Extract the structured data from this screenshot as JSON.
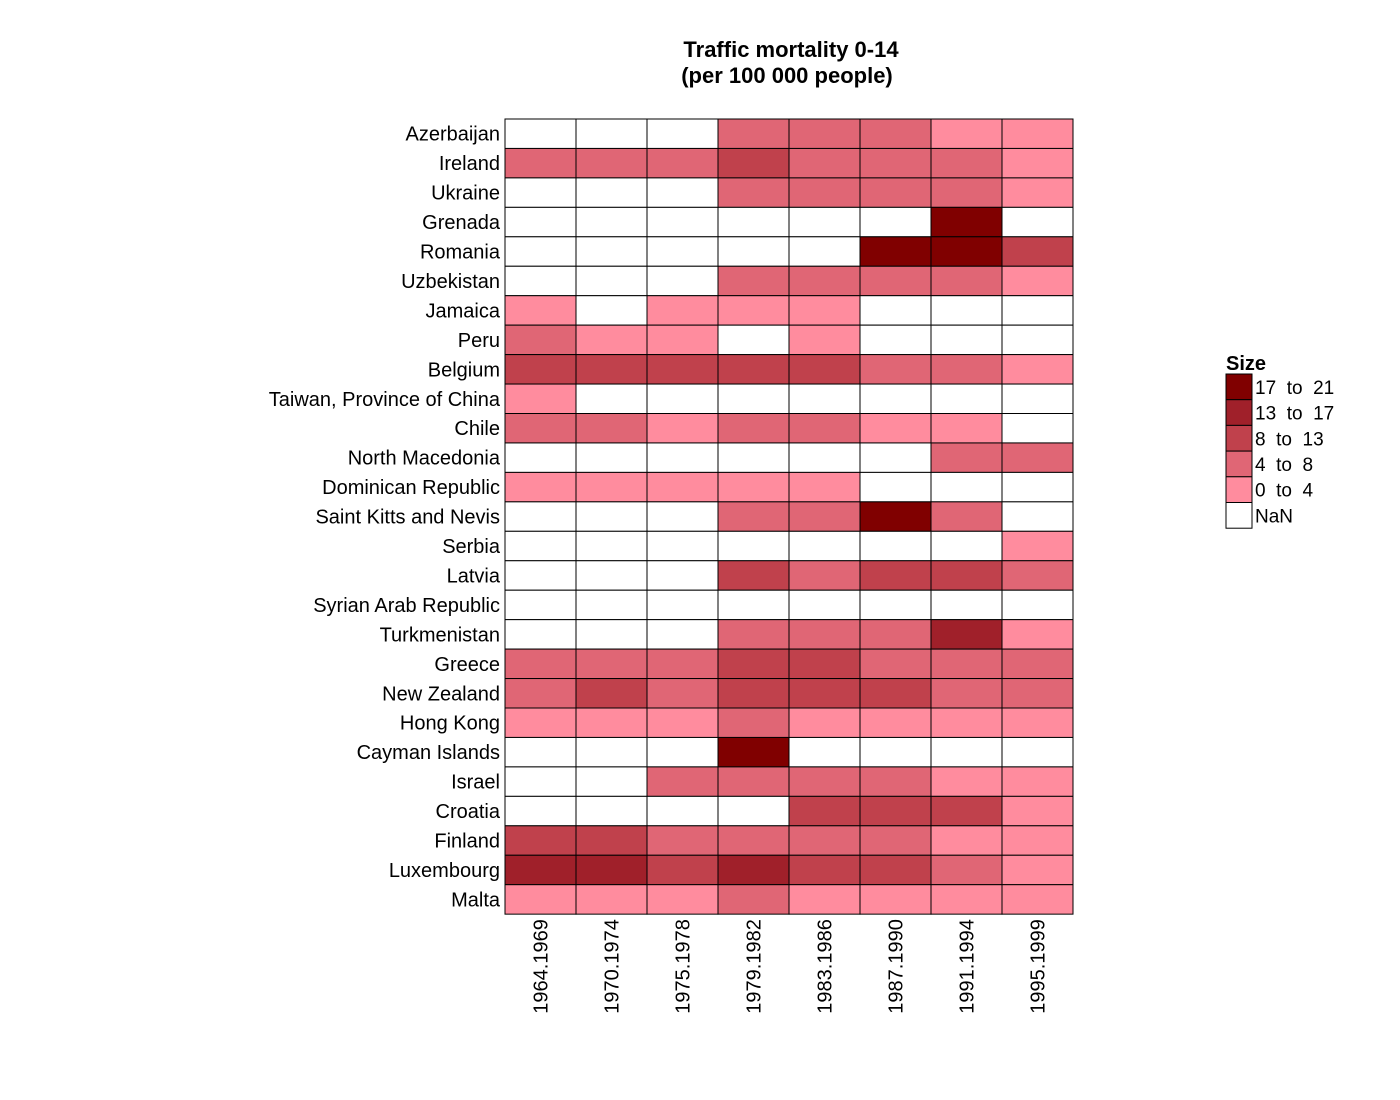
{
  "chart_data": {
    "type": "heatmap",
    "title": [
      "Traffic mortality 0-14",
      "(per 100 000 people)"
    ],
    "columns": [
      "1964.1969",
      "1970.1974",
      "1975.1978",
      "1979.1982",
      "1983.1986",
      "1987.1990",
      "1991.1994",
      "1995.1999"
    ],
    "rows": [
      "Azerbaijan",
      "Ireland",
      "Ukraine",
      "Grenada",
      "Romania",
      "Uzbekistan",
      "Jamaica",
      "Peru",
      "Belgium",
      "Taiwan, Province of China",
      "Chile",
      "North Macedonia",
      "Dominican Republic",
      "Saint Kitts and Nevis",
      "Serbia",
      "Latvia",
      "Syrian Arab Republic",
      "Turkmenistan",
      "Greece",
      "New Zealand",
      "Hong Kong",
      "Cayman Islands",
      "Israel",
      "Croatia",
      "Finland",
      "Luxembourg",
      "Malta"
    ],
    "values": [
      [
        null,
        null,
        null,
        6,
        6,
        6,
        2,
        2
      ],
      [
        6,
        6,
        6,
        10,
        6,
        6,
        6,
        2
      ],
      [
        null,
        null,
        null,
        6,
        6,
        6,
        6,
        2
      ],
      [
        null,
        null,
        null,
        null,
        null,
        null,
        19,
        null
      ],
      [
        null,
        null,
        null,
        null,
        null,
        19,
        19,
        10
      ],
      [
        null,
        null,
        null,
        6,
        6,
        6,
        6,
        2
      ],
      [
        2,
        null,
        2,
        2,
        2,
        null,
        null,
        null
      ],
      [
        6,
        2,
        2,
        null,
        2,
        null,
        null,
        null
      ],
      [
        10,
        10,
        10,
        10,
        10,
        6,
        6,
        2
      ],
      [
        2,
        null,
        null,
        null,
        null,
        null,
        null,
        null
      ],
      [
        6,
        6,
        2,
        6,
        6,
        2,
        2,
        null
      ],
      [
        null,
        null,
        null,
        null,
        null,
        null,
        6,
        6
      ],
      [
        2,
        2,
        2,
        2,
        2,
        null,
        null,
        null
      ],
      [
        null,
        null,
        null,
        6,
        6,
        19,
        6,
        null
      ],
      [
        null,
        null,
        null,
        null,
        null,
        null,
        null,
        2
      ],
      [
        null,
        null,
        null,
        10,
        6,
        10,
        10,
        6
      ],
      [
        null,
        null,
        null,
        null,
        null,
        null,
        null,
        null
      ],
      [
        null,
        null,
        null,
        6,
        6,
        6,
        15,
        2
      ],
      [
        6,
        6,
        6,
        10,
        10,
        6,
        6,
        6
      ],
      [
        6,
        10,
        6,
        10,
        10,
        10,
        6,
        6
      ],
      [
        2,
        2,
        2,
        6,
        2,
        2,
        2,
        2
      ],
      [
        null,
        null,
        null,
        19,
        null,
        null,
        null,
        null
      ],
      [
        null,
        null,
        6,
        6,
        6,
        6,
        2,
        2
      ],
      [
        null,
        null,
        null,
        null,
        10,
        10,
        10,
        2
      ],
      [
        10,
        10,
        6,
        6,
        6,
        6,
        2,
        2
      ],
      [
        15,
        15,
        10,
        15,
        10,
        10,
        6,
        2
      ],
      [
        2,
        2,
        2,
        6,
        2,
        2,
        2,
        2
      ]
    ],
    "legend": {
      "title": "Size",
      "placement": "right",
      "bins": [
        {
          "label": "17  to  21",
          "min": 17,
          "max": 21,
          "color": "#800000"
        },
        {
          "label": "13  to  17",
          "min": 13,
          "max": 17,
          "color": "#a0202a"
        },
        {
          "label": "8  to  13",
          "min": 8,
          "max": 13,
          "color": "#c0414c"
        },
        {
          "label": "4  to  8",
          "min": 4,
          "max": 8,
          "color": "#e06675"
        },
        {
          "label": "0  to  4",
          "min": 0,
          "max": 4,
          "color": "#ff8c9e"
        },
        {
          "label": "NaN",
          "min": null,
          "max": null,
          "color": "#ffffff"
        }
      ]
    }
  }
}
